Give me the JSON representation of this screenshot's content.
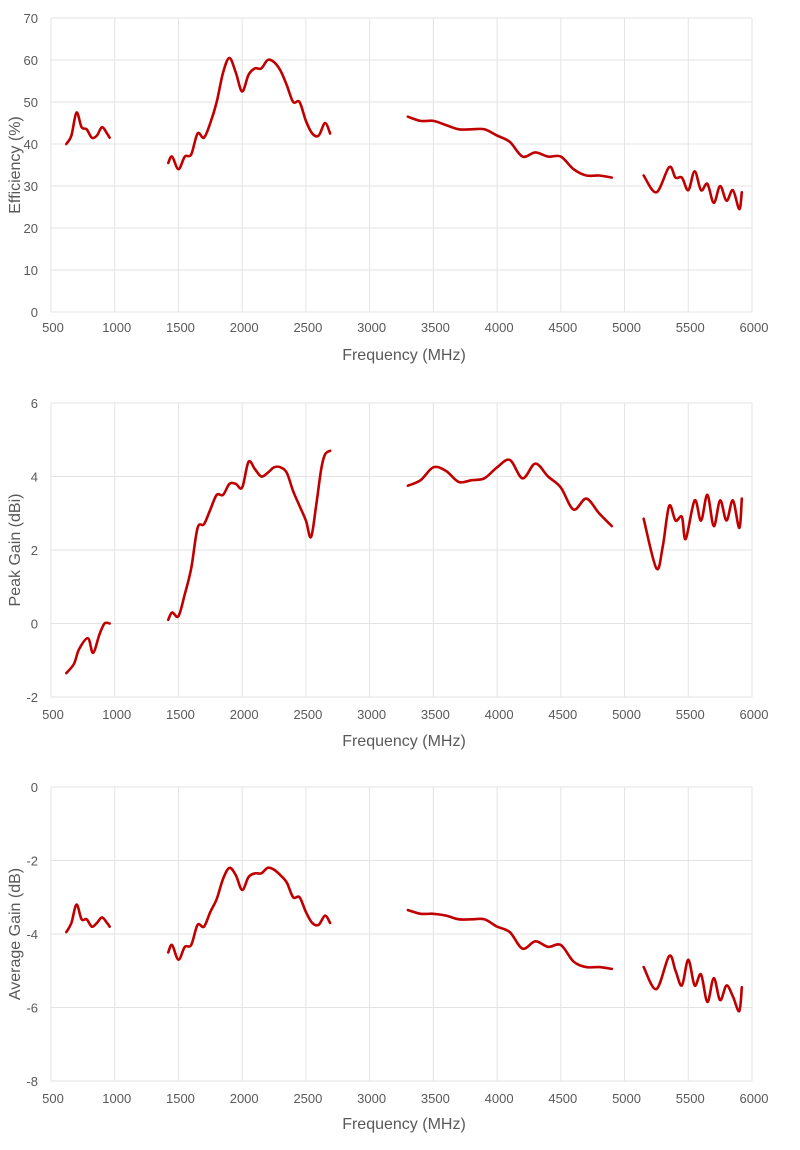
{
  "chart_data": [
    {
      "type": "line",
      "xlabel": "Frequency (MHz)",
      "ylabel": "Efficiency (%)",
      "xlim": [
        500,
        6000
      ],
      "ylim": [
        0,
        70
      ],
      "xticks": [
        500,
        1000,
        1500,
        2000,
        2500,
        3000,
        3500,
        4000,
        4500,
        5000,
        5500,
        6000
      ],
      "yticks": [
        0,
        10,
        20,
        30,
        40,
        50,
        60,
        70
      ],
      "grid": true,
      "color": "#C00000",
      "segments": [
        [
          [
            620,
            40
          ],
          [
            660,
            42
          ],
          [
            700,
            47.5
          ],
          [
            740,
            44
          ],
          [
            780,
            43.5
          ],
          [
            820,
            41.5
          ],
          [
            860,
            42
          ],
          [
            900,
            44
          ],
          [
            940,
            42.5
          ],
          [
            960,
            41.5
          ]
        ],
        [
          [
            1420,
            35.5
          ],
          [
            1450,
            37
          ],
          [
            1500,
            34
          ],
          [
            1550,
            37
          ],
          [
            1600,
            37.5
          ],
          [
            1650,
            42.5
          ],
          [
            1700,
            41.5
          ],
          [
            1750,
            45
          ],
          [
            1800,
            50
          ],
          [
            1850,
            57
          ],
          [
            1900,
            60.5
          ],
          [
            1950,
            57
          ],
          [
            2000,
            52.5
          ],
          [
            2050,
            56.5
          ],
          [
            2100,
            58
          ],
          [
            2150,
            58
          ],
          [
            2200,
            60
          ],
          [
            2250,
            59.5
          ],
          [
            2300,
            57.5
          ],
          [
            2350,
            54
          ],
          [
            2400,
            50
          ],
          [
            2450,
            50
          ],
          [
            2500,
            45.5
          ],
          [
            2550,
            42.5
          ],
          [
            2600,
            42
          ],
          [
            2650,
            45
          ],
          [
            2690,
            42.5
          ]
        ],
        [
          [
            3300,
            46.5
          ],
          [
            3400,
            45.5
          ],
          [
            3500,
            45.5
          ],
          [
            3600,
            44.5
          ],
          [
            3700,
            43.5
          ],
          [
            3800,
            43.5
          ],
          [
            3900,
            43.5
          ],
          [
            4000,
            42
          ],
          [
            4100,
            40.5
          ],
          [
            4200,
            37
          ],
          [
            4300,
            38
          ],
          [
            4400,
            37
          ],
          [
            4500,
            37
          ],
          [
            4600,
            34
          ],
          [
            4700,
            32.5
          ],
          [
            4800,
            32.5
          ],
          [
            4900,
            32
          ]
        ],
        [
          [
            5150,
            32.5
          ],
          [
            5250,
            28.5
          ],
          [
            5350,
            34.5
          ],
          [
            5400,
            32
          ],
          [
            5450,
            32
          ],
          [
            5500,
            29
          ],
          [
            5550,
            33.5
          ],
          [
            5600,
            29
          ],
          [
            5650,
            30.5
          ],
          [
            5700,
            26
          ],
          [
            5750,
            30
          ],
          [
            5800,
            26.5
          ],
          [
            5850,
            29
          ],
          [
            5900,
            24.5
          ],
          [
            5920,
            28.5
          ]
        ]
      ]
    },
    {
      "type": "line",
      "xlabel": "Frequency (MHz)",
      "ylabel": "Peak Gain (dBi)",
      "xlim": [
        500,
        6000
      ],
      "ylim": [
        -2,
        6
      ],
      "xticks": [
        500,
        1000,
        1500,
        2000,
        2500,
        3000,
        3500,
        4000,
        4500,
        5000,
        5500,
        6000
      ],
      "yticks": [
        -2,
        0,
        2,
        4,
        6
      ],
      "grid": true,
      "color": "#C00000",
      "segments": [
        [
          [
            620,
            -1.35
          ],
          [
            680,
            -1.1
          ],
          [
            720,
            -0.7
          ],
          [
            790,
            -0.4
          ],
          [
            830,
            -0.8
          ],
          [
            880,
            -0.3
          ],
          [
            920,
            0
          ],
          [
            960,
            0
          ]
        ],
        [
          [
            1420,
            0.1
          ],
          [
            1450,
            0.3
          ],
          [
            1500,
            0.2
          ],
          [
            1550,
            0.8
          ],
          [
            1600,
            1.5
          ],
          [
            1650,
            2.6
          ],
          [
            1700,
            2.7
          ],
          [
            1750,
            3.1
          ],
          [
            1800,
            3.5
          ],
          [
            1850,
            3.5
          ],
          [
            1900,
            3.8
          ],
          [
            1950,
            3.8
          ],
          [
            2000,
            3.7
          ],
          [
            2050,
            4.4
          ],
          [
            2100,
            4.2
          ],
          [
            2150,
            4.0
          ],
          [
            2200,
            4.1
          ],
          [
            2250,
            4.25
          ],
          [
            2300,
            4.25
          ],
          [
            2350,
            4.1
          ],
          [
            2400,
            3.6
          ],
          [
            2450,
            3.2
          ],
          [
            2500,
            2.8
          ],
          [
            2540,
            2.35
          ],
          [
            2580,
            3.2
          ],
          [
            2620,
            4.2
          ],
          [
            2650,
            4.6
          ],
          [
            2690,
            4.7
          ]
        ],
        [
          [
            3300,
            3.75
          ],
          [
            3400,
            3.9
          ],
          [
            3500,
            4.25
          ],
          [
            3600,
            4.15
          ],
          [
            3700,
            3.85
          ],
          [
            3800,
            3.9
          ],
          [
            3900,
            3.95
          ],
          [
            4000,
            4.25
          ],
          [
            4100,
            4.45
          ],
          [
            4200,
            3.95
          ],
          [
            4300,
            4.35
          ],
          [
            4400,
            4.0
          ],
          [
            4500,
            3.7
          ],
          [
            4600,
            3.1
          ],
          [
            4700,
            3.4
          ],
          [
            4800,
            3.0
          ],
          [
            4900,
            2.65
          ]
        ],
        [
          [
            5150,
            2.85
          ],
          [
            5250,
            1.5
          ],
          [
            5300,
            2.1
          ],
          [
            5350,
            3.2
          ],
          [
            5400,
            2.8
          ],
          [
            5450,
            2.9
          ],
          [
            5480,
            2.3
          ],
          [
            5550,
            3.35
          ],
          [
            5600,
            2.8
          ],
          [
            5650,
            3.5
          ],
          [
            5700,
            2.65
          ],
          [
            5750,
            3.35
          ],
          [
            5800,
            2.8
          ],
          [
            5850,
            3.35
          ],
          [
            5900,
            2.6
          ],
          [
            5920,
            3.4
          ]
        ]
      ]
    },
    {
      "type": "line",
      "xlabel": "Frequency (MHz)",
      "ylabel": "Average Gain (dB)",
      "xlim": [
        500,
        6000
      ],
      "ylim": [
        -8,
        0
      ],
      "xticks": [
        500,
        1000,
        1500,
        2000,
        2500,
        3000,
        3500,
        4000,
        4500,
        5000,
        5500,
        6000
      ],
      "yticks": [
        -8,
        -6,
        -4,
        -2,
        0
      ],
      "grid": true,
      "color": "#C00000",
      "segments": [
        [
          [
            620,
            -3.95
          ],
          [
            660,
            -3.7
          ],
          [
            700,
            -3.2
          ],
          [
            740,
            -3.6
          ],
          [
            780,
            -3.6
          ],
          [
            820,
            -3.8
          ],
          [
            860,
            -3.7
          ],
          [
            900,
            -3.55
          ],
          [
            940,
            -3.7
          ],
          [
            960,
            -3.8
          ]
        ],
        [
          [
            1420,
            -4.5
          ],
          [
            1450,
            -4.3
          ],
          [
            1500,
            -4.7
          ],
          [
            1550,
            -4.35
          ],
          [
            1600,
            -4.3
          ],
          [
            1650,
            -3.75
          ],
          [
            1700,
            -3.8
          ],
          [
            1750,
            -3.4
          ],
          [
            1800,
            -3.05
          ],
          [
            1850,
            -2.5
          ],
          [
            1900,
            -2.2
          ],
          [
            1950,
            -2.4
          ],
          [
            2000,
            -2.8
          ],
          [
            2050,
            -2.45
          ],
          [
            2100,
            -2.35
          ],
          [
            2150,
            -2.35
          ],
          [
            2200,
            -2.2
          ],
          [
            2250,
            -2.25
          ],
          [
            2300,
            -2.4
          ],
          [
            2350,
            -2.6
          ],
          [
            2400,
            -3.0
          ],
          [
            2450,
            -3.0
          ],
          [
            2500,
            -3.4
          ],
          [
            2550,
            -3.7
          ],
          [
            2600,
            -3.75
          ],
          [
            2650,
            -3.5
          ],
          [
            2690,
            -3.7
          ]
        ],
        [
          [
            3300,
            -3.35
          ],
          [
            3400,
            -3.45
          ],
          [
            3500,
            -3.45
          ],
          [
            3600,
            -3.5
          ],
          [
            3700,
            -3.6
          ],
          [
            3800,
            -3.6
          ],
          [
            3900,
            -3.6
          ],
          [
            4000,
            -3.8
          ],
          [
            4100,
            -3.95
          ],
          [
            4200,
            -4.4
          ],
          [
            4300,
            -4.2
          ],
          [
            4400,
            -4.35
          ],
          [
            4500,
            -4.3
          ],
          [
            4600,
            -4.75
          ],
          [
            4700,
            -4.9
          ],
          [
            4800,
            -4.9
          ],
          [
            4900,
            -4.95
          ]
        ],
        [
          [
            5150,
            -4.9
          ],
          [
            5250,
            -5.5
          ],
          [
            5350,
            -4.6
          ],
          [
            5400,
            -5.0
          ],
          [
            5450,
            -5.4
          ],
          [
            5500,
            -4.7
          ],
          [
            5550,
            -5.4
          ],
          [
            5600,
            -5.1
          ],
          [
            5650,
            -5.85
          ],
          [
            5700,
            -5.2
          ],
          [
            5750,
            -5.8
          ],
          [
            5800,
            -5.4
          ],
          [
            5850,
            -5.7
          ],
          [
            5900,
            -6.1
          ],
          [
            5920,
            -5.45
          ]
        ]
      ]
    }
  ]
}
